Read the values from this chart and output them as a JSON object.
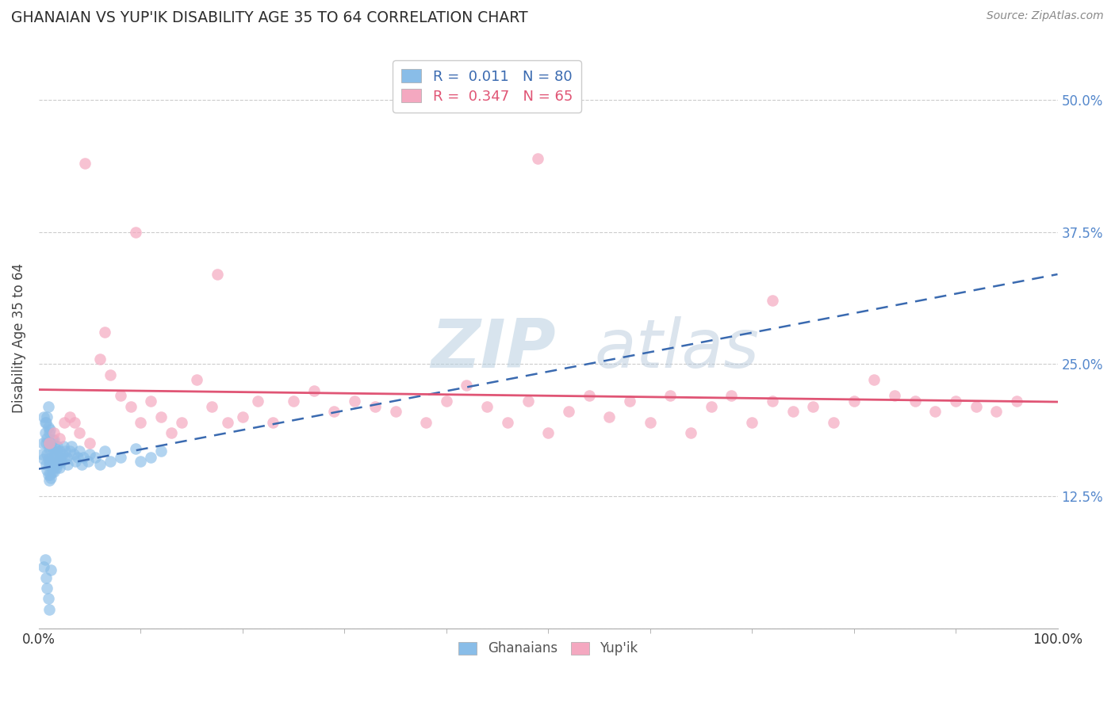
{
  "title": "GHANAIAN VS YUP'IK DISABILITY AGE 35 TO 64 CORRELATION CHART",
  "source_text": "Source: ZipAtlas.com",
  "ylabel": "Disability Age 35 to 64",
  "xlim": [
    0.0,
    1.0
  ],
  "ylim": [
    0.0,
    0.55
  ],
  "yticks": [
    0.0,
    0.125,
    0.25,
    0.375,
    0.5
  ],
  "ytick_labels": [
    "",
    "12.5%",
    "25.0%",
    "37.5%",
    "50.0%"
  ],
  "xticks": [
    0.0,
    1.0
  ],
  "xtick_labels": [
    "0.0%",
    "100.0%"
  ],
  "ghanaian_color": "#89bde8",
  "yupik_color": "#f4a8c0",
  "ghanaian_line_color": "#3a6ab0",
  "yupik_line_color": "#e05575",
  "legend_label_1": "R =  0.011   N = 80",
  "legend_label_2": "R =  0.347   N = 65",
  "legend_bottom_1": "Ghanaians",
  "legend_bottom_2": "Yup'ik",
  "watermark_zip": "ZIP",
  "watermark_atlas": "atlas",
  "background_color": "#ffffff",
  "grid_color": "#cccccc",
  "title_color": "#2d2d2d",
  "right_tick_color": "#5588cc",
  "ghanaian_x": [
    0.003,
    0.004,
    0.005,
    0.005,
    0.006,
    0.006,
    0.007,
    0.007,
    0.007,
    0.008,
    0.008,
    0.008,
    0.008,
    0.009,
    0.009,
    0.009,
    0.009,
    0.009,
    0.01,
    0.01,
    0.01,
    0.01,
    0.011,
    0.011,
    0.011,
    0.011,
    0.012,
    0.012,
    0.012,
    0.013,
    0.013,
    0.013,
    0.014,
    0.014,
    0.015,
    0.015,
    0.015,
    0.016,
    0.016,
    0.017,
    0.017,
    0.018,
    0.018,
    0.019,
    0.02,
    0.02,
    0.021,
    0.022,
    0.023,
    0.024,
    0.025,
    0.026,
    0.027,
    0.028,
    0.03,
    0.032,
    0.034,
    0.036,
    0.038,
    0.04,
    0.042,
    0.044,
    0.048,
    0.05,
    0.055,
    0.06,
    0.065,
    0.07,
    0.08,
    0.095,
    0.1,
    0.11,
    0.12,
    0.005,
    0.006,
    0.007,
    0.008,
    0.009,
    0.01,
    0.012
  ],
  "ghanaian_y": [
    0.165,
    0.175,
    0.16,
    0.2,
    0.185,
    0.195,
    0.155,
    0.175,
    0.195,
    0.15,
    0.165,
    0.18,
    0.2,
    0.145,
    0.16,
    0.175,
    0.19,
    0.21,
    0.14,
    0.155,
    0.17,
    0.185,
    0.145,
    0.158,
    0.172,
    0.188,
    0.142,
    0.158,
    0.175,
    0.148,
    0.162,
    0.178,
    0.152,
    0.168,
    0.148,
    0.162,
    0.178,
    0.155,
    0.17,
    0.152,
    0.168,
    0.155,
    0.172,
    0.158,
    0.152,
    0.168,
    0.162,
    0.158,
    0.165,
    0.172,
    0.16,
    0.168,
    0.162,
    0.155,
    0.168,
    0.172,
    0.165,
    0.158,
    0.162,
    0.168,
    0.155,
    0.162,
    0.158,
    0.165,
    0.162,
    0.155,
    0.168,
    0.158,
    0.162,
    0.17,
    0.158,
    0.162,
    0.168,
    0.058,
    0.065,
    0.048,
    0.038,
    0.028,
    0.018,
    0.055
  ],
  "yupik_x": [
    0.01,
    0.015,
    0.02,
    0.025,
    0.03,
    0.035,
    0.04,
    0.05,
    0.06,
    0.065,
    0.07,
    0.08,
    0.09,
    0.1,
    0.11,
    0.12,
    0.13,
    0.14,
    0.155,
    0.17,
    0.185,
    0.2,
    0.215,
    0.23,
    0.25,
    0.27,
    0.29,
    0.31,
    0.33,
    0.35,
    0.38,
    0.4,
    0.42,
    0.44,
    0.46,
    0.48,
    0.5,
    0.52,
    0.54,
    0.56,
    0.58,
    0.6,
    0.62,
    0.64,
    0.66,
    0.68,
    0.7,
    0.72,
    0.74,
    0.76,
    0.78,
    0.8,
    0.82,
    0.84,
    0.86,
    0.88,
    0.9,
    0.92,
    0.94,
    0.96,
    0.045,
    0.095,
    0.175,
    0.49,
    0.72
  ],
  "yupik_y": [
    0.175,
    0.185,
    0.18,
    0.195,
    0.2,
    0.195,
    0.185,
    0.175,
    0.255,
    0.28,
    0.24,
    0.22,
    0.21,
    0.195,
    0.215,
    0.2,
    0.185,
    0.195,
    0.235,
    0.21,
    0.195,
    0.2,
    0.215,
    0.195,
    0.215,
    0.225,
    0.205,
    0.215,
    0.21,
    0.205,
    0.195,
    0.215,
    0.23,
    0.21,
    0.195,
    0.215,
    0.185,
    0.205,
    0.22,
    0.2,
    0.215,
    0.195,
    0.22,
    0.185,
    0.21,
    0.22,
    0.195,
    0.215,
    0.205,
    0.21,
    0.195,
    0.215,
    0.235,
    0.22,
    0.215,
    0.205,
    0.215,
    0.21,
    0.205,
    0.215,
    0.44,
    0.375,
    0.335,
    0.445,
    0.31
  ]
}
